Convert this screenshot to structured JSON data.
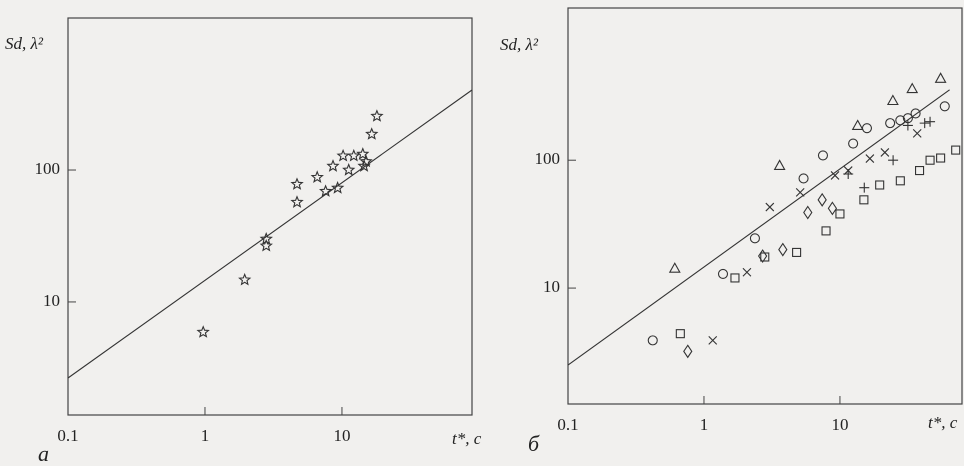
{
  "chart_data": [
    {
      "type": "scatter",
      "panel_label": "a",
      "ylabel": "Sd, λ²",
      "xlabel": "t*, c",
      "log_x": true,
      "log_y": true,
      "grid": false,
      "xlim": [
        0.1,
        89
      ],
      "ylim": [
        1.39,
        1420
      ],
      "xticks": [
        0.1,
        1,
        10
      ],
      "yticks": [
        10,
        100
      ],
      "color": "#333333",
      "series": [
        {
          "marker": "star",
          "x": [
            0.97,
            1.95,
            2.8,
            2.8,
            4.7,
            4.7,
            6.6,
            7.6,
            8.6,
            9.3,
            10.2,
            11.2,
            12.2,
            14.2,
            14.5,
            15,
            16.5,
            18
          ],
          "values": [
            5.9,
            14.7,
            26.6,
            30,
            57,
            78,
            88,
            69,
            107,
            73,
            128,
            100,
            128,
            132,
            107,
            116,
            187,
            256
          ]
        }
      ],
      "fit": {
        "x": [
          0.1,
          89
        ],
        "values": [
          2.65,
          404
        ]
      }
    },
    {
      "type": "scatter",
      "panel_label": "б",
      "ylabel": "Sd, λ²",
      "xlabel": "t*, c",
      "log_x": true,
      "log_y": true,
      "grid": false,
      "xlim": [
        0.1,
        79
      ],
      "ylim": [
        1.24,
        1550
      ],
      "xticks": [
        0.1,
        1,
        10
      ],
      "yticks": [
        10,
        100
      ],
      "color": "#333333",
      "series": [
        {
          "marker": "triangle",
          "x": [
            0.61,
            3.6,
            13.5,
            24.5,
            34,
            55
          ],
          "values": [
            14.3,
            91,
            187,
            293,
            363,
            437
          ]
        },
        {
          "marker": "circle",
          "x": [
            0.42,
            1.38,
            2.37,
            5.4,
            7.5,
            12.5,
            15.8,
            23.4,
            27.8,
            31.6,
            36,
            59
          ],
          "values": [
            3.9,
            12.9,
            24.5,
            72,
            109,
            135,
            178,
            195,
            205,
            213,
            232,
            264
          ]
        },
        {
          "marker": "square",
          "x": [
            0.67,
            1.69,
            2.8,
            4.8,
            7.9,
            10,
            15,
            19.6,
            27.8,
            38.5,
            46,
            55,
            71
          ],
          "values": [
            4.4,
            12,
            17.5,
            19,
            28,
            38,
            49,
            64,
            69,
            83,
            100,
            104,
            120
          ]
        },
        {
          "marker": "diamond",
          "x": [
            0.76,
            2.7,
            3.8,
            5.8,
            7.4,
            8.8
          ],
          "values": [
            3.2,
            17.8,
            20,
            39,
            49,
            42
          ]
        },
        {
          "marker": "cross",
          "x": [
            1.16,
            2.07,
            3.05,
            5.1,
            9.2,
            11.5,
            16.6,
            21.4,
            37
          ],
          "values": [
            3.9,
            13.3,
            43,
            56,
            76,
            83,
            103,
            115,
            162
          ]
        },
        {
          "marker": "plus",
          "x": [
            11.5,
            15.1,
            24.6,
            31.6,
            42,
            46
          ],
          "values": [
            78,
            61,
            100,
            187,
            195,
            200
          ]
        }
      ],
      "fit": {
        "x": [
          0.1,
          64
        ],
        "values": [
          2.5,
          355
        ]
      }
    }
  ]
}
